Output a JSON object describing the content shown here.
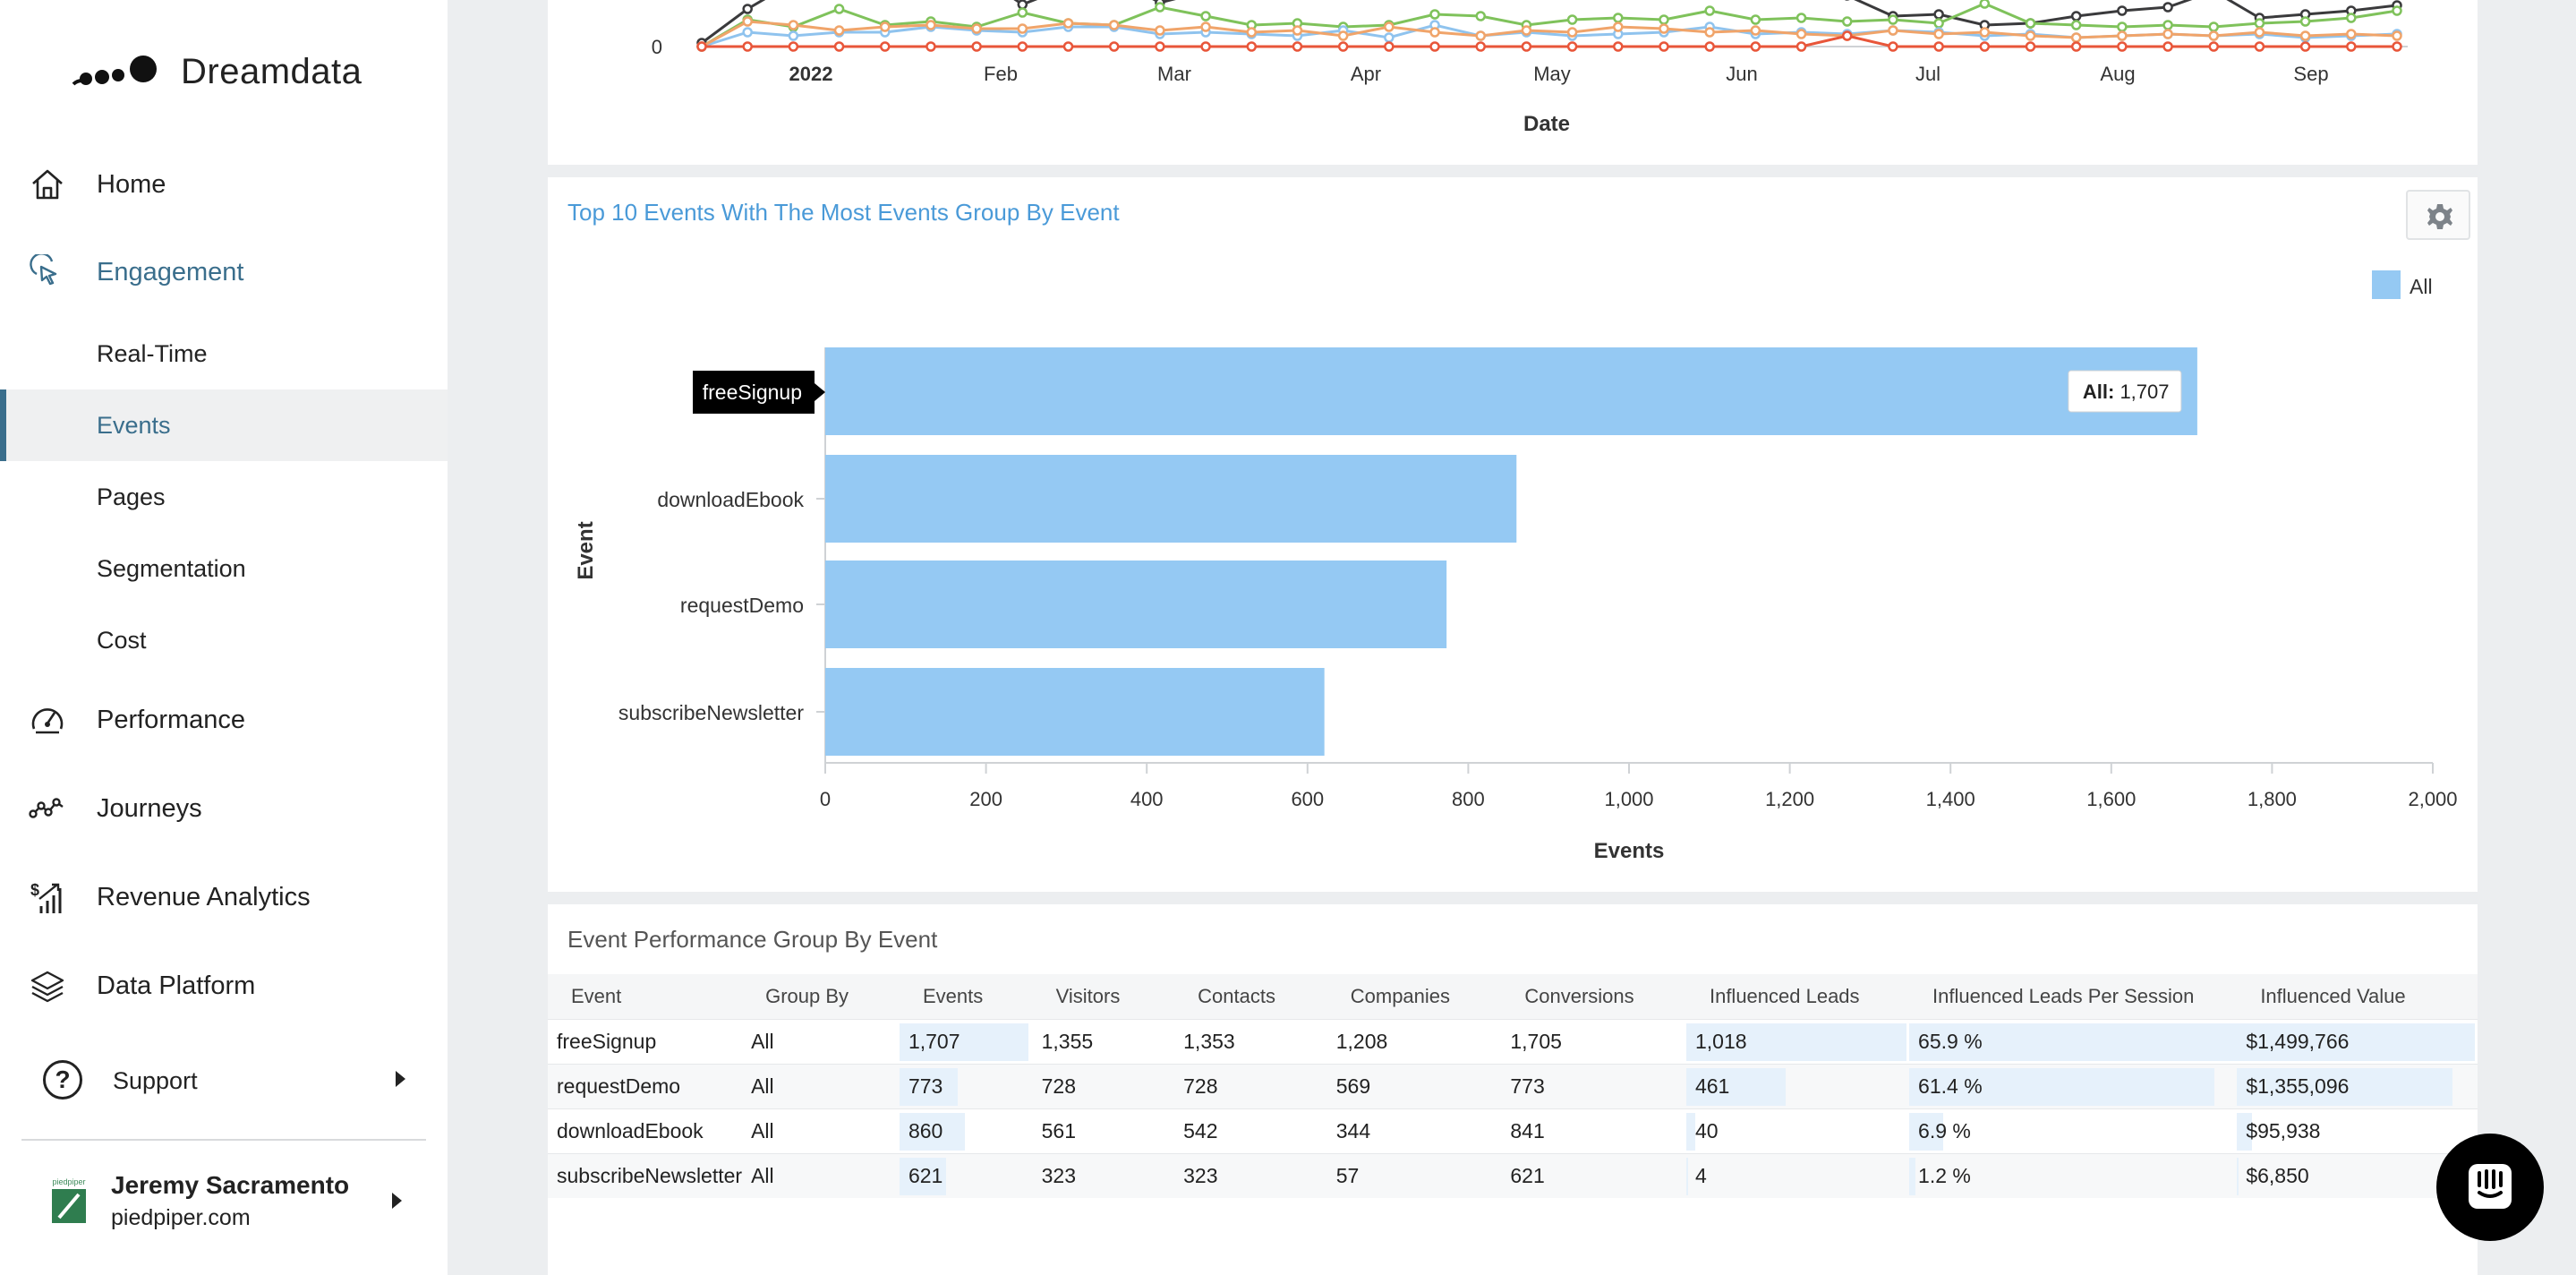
{
  "sidebar": {
    "brand": "Dreamdata",
    "nav": {
      "home": "Home",
      "engagement": "Engagement",
      "realtime": "Real-Time",
      "events": "Events",
      "pages": "Pages",
      "segmentation": "Segmentation",
      "cost": "Cost",
      "performance": "Performance",
      "journeys": "Journeys",
      "revenue": "Revenue Analytics",
      "dataplatform": "Data Platform"
    },
    "support": "Support",
    "user": {
      "name": "Jeremy Sacramento",
      "org": "piedpiper.com",
      "avatar_caption": "piedpiper"
    }
  },
  "line_chart": {
    "y_tick": "0",
    "x_ticks": [
      "2022",
      "Feb",
      "Mar",
      "Apr",
      "May",
      "Jun",
      "Jul",
      "Aug",
      "Sep"
    ],
    "xlabel": "Date"
  },
  "chart_data": {
    "type": "bar",
    "orientation": "horizontal",
    "title": "Top 10 Events With The Most Events Group By Event",
    "categories": [
      "freeSignup",
      "downloadEbook",
      "requestDemo",
      "subscribeNewsletter"
    ],
    "series": [
      {
        "name": "All",
        "values": [
          1707,
          860,
          773,
          621
        ]
      }
    ],
    "xlabel": "Events",
    "ylabel": "Event",
    "xlim": [
      0,
      2000
    ],
    "x_ticks": [
      "0",
      "200",
      "400",
      "600",
      "800",
      "1,000",
      "1,200",
      "1,400",
      "1,600",
      "1,800",
      "2,000"
    ],
    "legend": "top-right",
    "tooltip": {
      "label": "All",
      "value": "1,707"
    },
    "colors": {
      "bar": "#95c9f3"
    }
  },
  "table": {
    "title": "Event Performance Group By Event",
    "columns": [
      "Event",
      "Group By",
      "Events",
      "Visitors",
      "Contacts",
      "Companies",
      "Conversions",
      "Influenced Leads",
      "Influenced Leads Per Session",
      "Influenced Value"
    ],
    "rows": [
      {
        "cells": [
          "freeSignup",
          "All",
          "1,707",
          "1,355",
          "1,353",
          "1,208",
          "1,705",
          "1,018",
          "65.9 %",
          "$1,499,766"
        ],
        "fracs": {
          "events": 1.0,
          "leads": 1.0,
          "lps": 1.0,
          "value": 1.0
        }
      },
      {
        "cells": [
          "requestDemo",
          "All",
          "773",
          "728",
          "728",
          "569",
          "773",
          "461",
          "61.4 %",
          "$1,355,096"
        ],
        "fracs": {
          "events": 0.453,
          "leads": 0.453,
          "lps": 0.932,
          "value": 0.904
        }
      },
      {
        "cells": [
          "downloadEbook",
          "All",
          "860",
          "561",
          "542",
          "344",
          "841",
          "40",
          "6.9 %",
          "$95,938"
        ],
        "fracs": {
          "events": 0.504,
          "leads": 0.039,
          "lps": 0.105,
          "value": 0.064
        }
      },
      {
        "cells": [
          "subscribeNewsletter",
          "All",
          "621",
          "323",
          "323",
          "57",
          "621",
          "4",
          "1.2 %",
          "$6,850"
        ],
        "fracs": {
          "events": 0.364,
          "leads": 0.004,
          "lps": 0.018,
          "value": 0.005
        }
      }
    ]
  },
  "colors": {
    "accent": "#3a6e8c",
    "chart_title": "#4a9ad8",
    "line_black": "#3a3a3c",
    "line_green": "#7fc25b",
    "line_blue": "#8fc3ee",
    "line_orange": "#f0a46a",
    "line_red": "#e8563a"
  }
}
